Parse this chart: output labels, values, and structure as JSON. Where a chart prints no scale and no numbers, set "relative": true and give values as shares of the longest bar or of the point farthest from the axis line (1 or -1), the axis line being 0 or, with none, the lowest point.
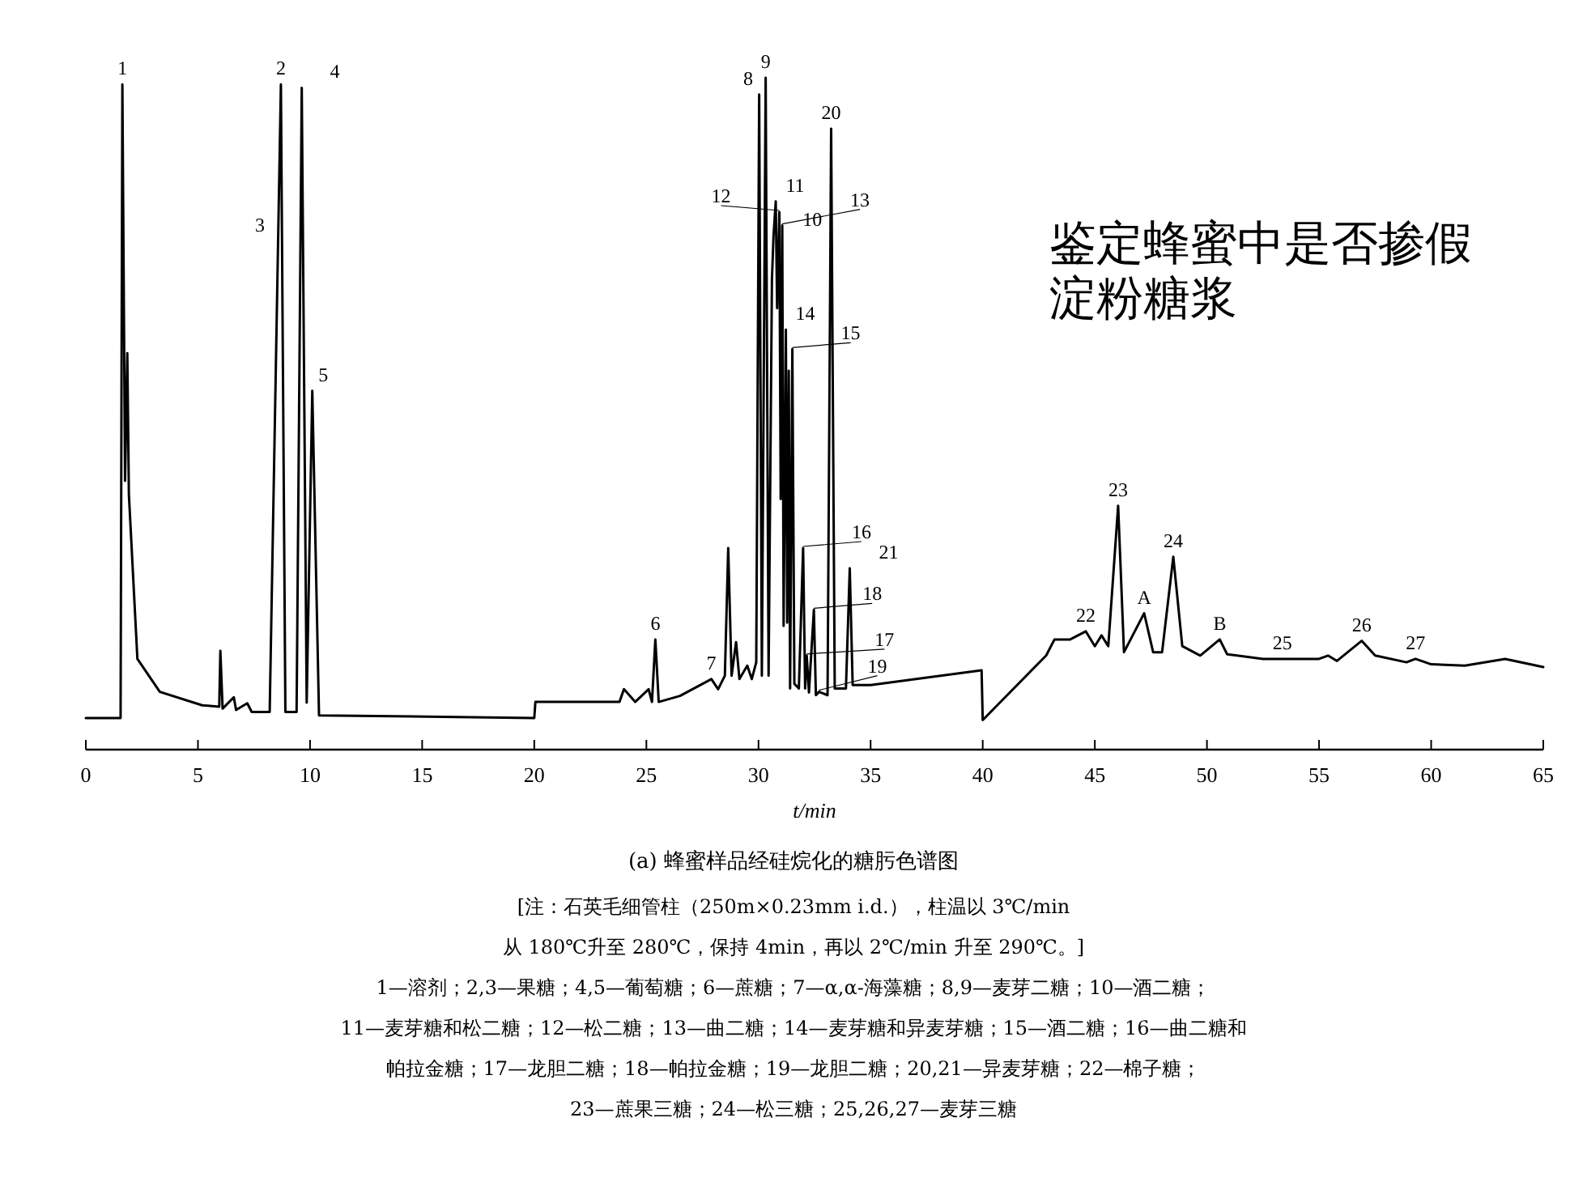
{
  "chart_data": {
    "type": "line",
    "relative": true,
    "title": "(a) 蜂蜜样品经硅烷化的糖肟色谱图",
    "subtitle": "鉴定蜂蜜中是否掺假淀粉糖浆",
    "xlabel": "t/min",
    "xlim": [
      0,
      65
    ],
    "xticks": [
      0,
      5,
      10,
      15,
      20,
      25,
      30,
      35,
      40,
      45,
      50,
      55,
      60,
      65
    ],
    "marker": "none",
    "line_style": "solid",
    "x": [
      0,
      1.55,
      1.63,
      1.75,
      1.85,
      1.92,
      2.3,
      3.3,
      5.19,
      5.95,
      6.0,
      6.1,
      6.6,
      6.7,
      7.2,
      7.4,
      8.2,
      8.7,
      8.9,
      9.4,
      9.63,
      9.85,
      10.1,
      10.4,
      20.0,
      20.05,
      23.8,
      24.0,
      24.5,
      25.1,
      25.25,
      25.4,
      25.55,
      26.5,
      27.9,
      28.2,
      28.5,
      28.65,
      28.8,
      29.0,
      29.15,
      29.5,
      29.7,
      29.9,
      30.03,
      30.15,
      30.32,
      30.45,
      30.6,
      30.67,
      30.77,
      30.83,
      30.93,
      30.99,
      31.06,
      31.12,
      31.22,
      31.28,
      31.35,
      31.41,
      31.51,
      31.6,
      31.8,
      31.99,
      32.08,
      32.15,
      32.25,
      32.47,
      32.56,
      32.7,
      33.08,
      33.24,
      33.4,
      33.9,
      34.07,
      34.2,
      35,
      39.95,
      40.0,
      42.83,
      43.2,
      43.9,
      44.6,
      45.0,
      45.3,
      45.6,
      46.04,
      46.3,
      47.2,
      47.6,
      48.0,
      48.5,
      48.9,
      49.7,
      50.57,
      50.9,
      52.5,
      55,
      55.4,
      55.8,
      56.9,
      57.5,
      58.9,
      59.3,
      60,
      61.5,
      63.3,
      65
    ],
    "series": [
      {
        "color": "#000000",
        "values": [
          0.047,
          0.047,
          0.99,
          0.4,
          0.59,
          0.38,
          0.135,
          0.086,
          0.066,
          0.064,
          0.147,
          0.061,
          0.078,
          0.059,
          0.069,
          0.056,
          0.056,
          0.99,
          0.056,
          0.056,
          0.985,
          0.07,
          0.534,
          0.051,
          0.047,
          0.071,
          0.071,
          0.09,
          0.071,
          0.09,
          0.071,
          0.164,
          0.071,
          0.08,
          0.105,
          0.09,
          0.11,
          0.3,
          0.11,
          0.16,
          0.105,
          0.125,
          0.105,
          0.13,
          0.975,
          0.11,
          1.0,
          0.11,
          0.7,
          0.765,
          0.816,
          0.657,
          0.8,
          0.373,
          0.78,
          0.184,
          0.625,
          0.189,
          0.564,
          0.091,
          0.596,
          0.098,
          0.091,
          0.3,
          0.091,
          0.14,
          0.085,
          0.208,
          0.081,
          0.086,
          0.081,
          0.924,
          0.091,
          0.091,
          0.27,
          0.096,
          0.096,
          0.118,
          0.044,
          0.14,
          0.164,
          0.164,
          0.176,
          0.154,
          0.17,
          0.154,
          0.363,
          0.145,
          0.203,
          0.145,
          0.145,
          0.287,
          0.154,
          0.14,
          0.164,
          0.142,
          0.135,
          0.135,
          0.14,
          0.132,
          0.162,
          0.14,
          0.13,
          0.135,
          0.127,
          0.125,
          0.135,
          0.123
        ]
      }
    ],
    "annotations": [
      {
        "text": "1",
        "x": 1.63,
        "y": 0.99
      },
      {
        "text": "2",
        "x": 8.7,
        "y": 0.99
      },
      {
        "text": "3",
        "x": 8.75,
        "y": 0.757
      },
      {
        "text": "4",
        "x": 9.63,
        "y": 0.985
      },
      {
        "text": "5",
        "x": 10.1,
        "y": 0.534
      },
      {
        "text": "6",
        "x": 25.4,
        "y": 0.164
      },
      {
        "text": "7",
        "x": 27.9,
        "y": 0.105
      },
      {
        "text": "8",
        "x": 30.03,
        "y": 0.975
      },
      {
        "text": "9",
        "x": 30.32,
        "y": 1.0
      },
      {
        "text": "10",
        "x": 30.67,
        "y": 0.765
      },
      {
        "text": "11",
        "x": 30.77,
        "y": 0.816
      },
      {
        "text": "12",
        "x": 30.93,
        "y": 0.8
      },
      {
        "text": "13",
        "x": 31.06,
        "y": 0.78
      },
      {
        "text": "14",
        "x": 31.22,
        "y": 0.625
      },
      {
        "text": "15",
        "x": 31.51,
        "y": 0.596
      },
      {
        "text": "16",
        "x": 31.99,
        "y": 0.3
      },
      {
        "text": "17",
        "x": 32.15,
        "y": 0.14
      },
      {
        "text": "18",
        "x": 32.47,
        "y": 0.208
      },
      {
        "text": "19",
        "x": 32.7,
        "y": 0.086
      },
      {
        "text": "20",
        "x": 33.24,
        "y": 0.924
      },
      {
        "text": "21",
        "x": 34.07,
        "y": 0.27
      },
      {
        "text": "22",
        "x": 44.6,
        "y": 0.176
      },
      {
        "text": "23",
        "x": 46.04,
        "y": 0.363
      },
      {
        "text": "A",
        "x": 47.2,
        "y": 0.203
      },
      {
        "text": "24",
        "x": 48.5,
        "y": 0.287
      },
      {
        "text": "B",
        "x": 50.57,
        "y": 0.164
      },
      {
        "text": "25",
        "x": 52.5,
        "y": 0.135
      },
      {
        "text": "26",
        "x": 56.9,
        "y": 0.162
      },
      {
        "text": "27",
        "x": 59.3,
        "y": 0.135
      },
      "[注：石英毛细管柱（250m×0.23mm i.d.），柱温以 3℃/min",
      "从 180℃升至 280℃，保持 4min，再以 2℃/min 升至 290℃。]",
      "1—溶剂；2,3—果糖；4,5—葡萄糖；6—蔗糖；7—α,α-海藻糖；8,9—麦芽二糖；10—酒二糖；",
      "11—麦芽糖和松二糖；12—松二糖；13—曲二糖；14—麦芽糖和异麦芽糖；15—酒二糖；16—曲二糖和",
      "帕拉金糖；17—龙胆二糖；18—帕拉金糖；19—龙胆二糖；20,21—异麦芽糖；22—棉子糖；",
      "23—蔗果三糖；24—松三糖；25,26,27—麦芽三糖"
    ]
  }
}
